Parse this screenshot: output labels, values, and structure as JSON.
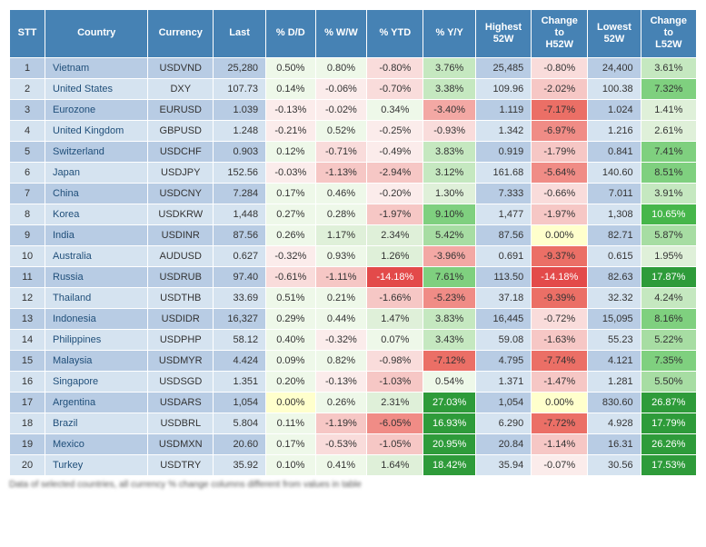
{
  "table": {
    "headers": [
      "STT",
      "Country",
      "Currency",
      "Last",
      "% D/D",
      "% W/W",
      "% YTD",
      "% Y/Y",
      "Highest 52W",
      "Change to H52W",
      "Lowest 52W",
      "Change to L52W"
    ],
    "rows": [
      {
        "stt": 1,
        "country": "Vietnam",
        "currency": "USDVND",
        "last": "25,280",
        "dd": "0.50%",
        "ww": "0.80%",
        "ytd": "-0.80%",
        "yy": "3.76%",
        "hi52": "25,485",
        "ch52h": "-0.80%",
        "lo52": "24,400",
        "ch52l": "3.61%"
      },
      {
        "stt": 2,
        "country": "United States",
        "currency": "DXY",
        "last": "107.73",
        "dd": "0.14%",
        "ww": "-0.06%",
        "ytd": "-0.70%",
        "yy": "3.38%",
        "hi52": "109.96",
        "ch52h": "-2.02%",
        "lo52": "100.38",
        "ch52l": "7.32%"
      },
      {
        "stt": 3,
        "country": "Eurozone",
        "currency": "EURUSD",
        "last": "1.039",
        "dd": "-0.13%",
        "ww": "-0.02%",
        "ytd": "0.34%",
        "yy": "-3.40%",
        "hi52": "1.119",
        "ch52h": "-7.17%",
        "lo52": "1.024",
        "ch52l": "1.41%"
      },
      {
        "stt": 4,
        "country": "United Kingdom",
        "currency": "GBPUSD",
        "last": "1.248",
        "dd": "-0.21%",
        "ww": "0.52%",
        "ytd": "-0.25%",
        "yy": "-0.93%",
        "hi52": "1.342",
        "ch52h": "-6.97%",
        "lo52": "1.216",
        "ch52l": "2.61%"
      },
      {
        "stt": 5,
        "country": "Switzerland",
        "currency": "USDCHF",
        "last": "0.903",
        "dd": "0.12%",
        "ww": "-0.71%",
        "ytd": "-0.49%",
        "yy": "3.83%",
        "hi52": "0.919",
        "ch52h": "-1.79%",
        "lo52": "0.841",
        "ch52l": "7.41%"
      },
      {
        "stt": 6,
        "country": "Japan",
        "currency": "USDJPY",
        "last": "152.56",
        "dd": "-0.03%",
        "ww": "-1.13%",
        "ytd": "-2.94%",
        "yy": "3.12%",
        "hi52": "161.68",
        "ch52h": "-5.64%",
        "lo52": "140.60",
        "ch52l": "8.51%"
      },
      {
        "stt": 7,
        "country": "China",
        "currency": "USDCNY",
        "last": "7.284",
        "dd": "0.17%",
        "ww": "0.46%",
        "ytd": "-0.20%",
        "yy": "1.30%",
        "hi52": "7.333",
        "ch52h": "-0.66%",
        "lo52": "7.011",
        "ch52l": "3.91%"
      },
      {
        "stt": 8,
        "country": "Korea",
        "currency": "USDKRW",
        "last": "1,448",
        "dd": "0.27%",
        "ww": "0.28%",
        "ytd": "-1.97%",
        "yy": "9.10%",
        "hi52": "1,477",
        "ch52h": "-1.97%",
        "lo52": "1,308",
        "ch52l": "10.65%"
      },
      {
        "stt": 9,
        "country": "India",
        "currency": "USDINR",
        "last": "87.56",
        "dd": "0.26%",
        "ww": "1.17%",
        "ytd": "2.34%",
        "yy": "5.42%",
        "hi52": "87.56",
        "ch52h": "0.00%",
        "lo52": "82.71",
        "ch52l": "5.87%"
      },
      {
        "stt": 10,
        "country": "Australia",
        "currency": "AUDUSD",
        "last": "0.627",
        "dd": "-0.32%",
        "ww": "0.93%",
        "ytd": "1.26%",
        "yy": "-3.96%",
        "hi52": "0.691",
        "ch52h": "-9.37%",
        "lo52": "0.615",
        "ch52l": "1.95%"
      },
      {
        "stt": 11,
        "country": "Russia",
        "currency": "USDRUB",
        "last": "97.40",
        "dd": "-0.61%",
        "ww": "-1.11%",
        "ytd": "-14.18%",
        "yy": "7.61%",
        "hi52": "113.50",
        "ch52h": "-14.18%",
        "lo52": "82.63",
        "ch52l": "17.87%"
      },
      {
        "stt": 12,
        "country": "Thailand",
        "currency": "USDTHB",
        "last": "33.69",
        "dd": "0.51%",
        "ww": "0.21%",
        "ytd": "-1.66%",
        "yy": "-5.23%",
        "hi52": "37.18",
        "ch52h": "-9.39%",
        "lo52": "32.32",
        "ch52l": "4.24%"
      },
      {
        "stt": 13,
        "country": "Indonesia",
        "currency": "USDIDR",
        "last": "16,327",
        "dd": "0.29%",
        "ww": "0.44%",
        "ytd": "1.47%",
        "yy": "3.83%",
        "hi52": "16,445",
        "ch52h": "-0.72%",
        "lo52": "15,095",
        "ch52l": "8.16%"
      },
      {
        "stt": 14,
        "country": "Philippines",
        "currency": "USDPHP",
        "last": "58.12",
        "dd": "0.40%",
        "ww": "-0.32%",
        "ytd": "0.07%",
        "yy": "3.43%",
        "hi52": "59.08",
        "ch52h": "-1.63%",
        "lo52": "55.23",
        "ch52l": "5.22%"
      },
      {
        "stt": 15,
        "country": "Malaysia",
        "currency": "USDMYR",
        "last": "4.424",
        "dd": "0.09%",
        "ww": "0.82%",
        "ytd": "-0.98%",
        "yy": "-7.12%",
        "hi52": "4.795",
        "ch52h": "-7.74%",
        "lo52": "4.121",
        "ch52l": "7.35%"
      },
      {
        "stt": 16,
        "country": "Singapore",
        "currency": "USDSGD",
        "last": "1.351",
        "dd": "0.20%",
        "ww": "-0.13%",
        "ytd": "-1.03%",
        "yy": "0.54%",
        "hi52": "1.371",
        "ch52h": "-1.47%",
        "lo52": "1.281",
        "ch52l": "5.50%"
      },
      {
        "stt": 17,
        "country": "Argentina",
        "currency": "USDARS",
        "last": "1,054",
        "dd": "0.00%",
        "ww": "0.26%",
        "ytd": "2.31%",
        "yy": "27.03%",
        "hi52": "1,054",
        "ch52h": "0.00%",
        "lo52": "830.60",
        "ch52l": "26.87%"
      },
      {
        "stt": 18,
        "country": "Brazil",
        "currency": "USDBRL",
        "last": "5.804",
        "dd": "0.11%",
        "ww": "-1.19%",
        "ytd": "-6.05%",
        "yy": "16.93%",
        "hi52": "6.290",
        "ch52h": "-7.72%",
        "lo52": "4.928",
        "ch52l": "17.79%"
      },
      {
        "stt": 19,
        "country": "Mexico",
        "currency": "USDMXN",
        "last": "20.60",
        "dd": "0.17%",
        "ww": "-0.53%",
        "ytd": "-1.05%",
        "yy": "20.95%",
        "hi52": "20.84",
        "ch52h": "-1.14%",
        "lo52": "16.31",
        "ch52l": "26.26%"
      },
      {
        "stt": 20,
        "country": "Turkey",
        "currency": "USDTRY",
        "last": "35.92",
        "dd": "0.10%",
        "ww": "0.41%",
        "ytd": "1.64%",
        "yy": "18.42%",
        "hi52": "35.94",
        "ch52h": "-0.07%",
        "lo52": "30.56",
        "ch52l": "17.53%"
      }
    ],
    "caption": "Data of selected countries, all currency % change columns different from values in table"
  },
  "style": {
    "header_bg": "#4682b4",
    "cell_blue_even": "#b8cce4",
    "cell_blue_odd": "#d5e3f0"
  }
}
